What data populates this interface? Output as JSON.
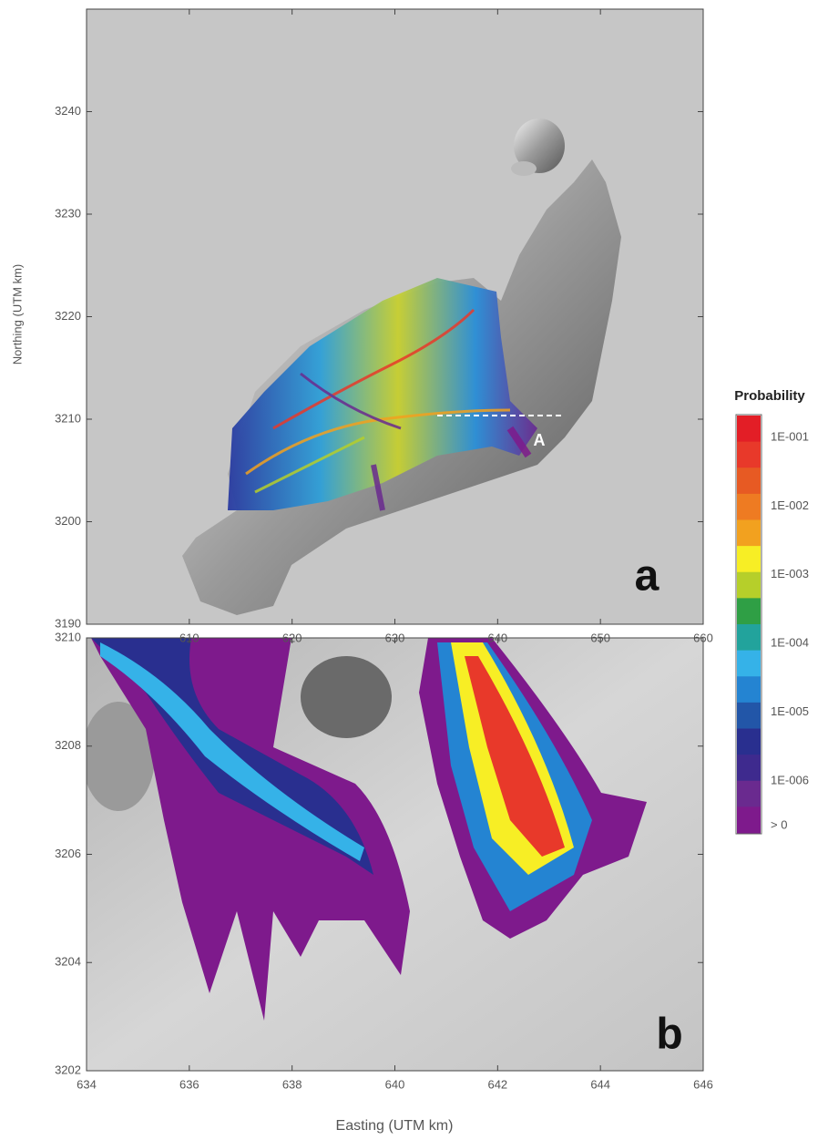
{
  "panels": [
    {
      "letter": "a",
      "annotation": "A",
      "xlim": [
        600,
        660
      ],
      "ylim": [
        3190,
        3250
      ],
      "xticks": [
        610,
        620,
        630,
        640,
        650,
        660
      ],
      "yticks": [
        3190,
        3200,
        3210,
        3220,
        3230,
        3240
      ]
    },
    {
      "letter": "b",
      "xlim": [
        634,
        646
      ],
      "ylim": [
        3202,
        3210
      ],
      "xticks": [
        634,
        636,
        638,
        640,
        642,
        644,
        646
      ],
      "yticks": [
        3202,
        3204,
        3206,
        3208,
        3210
      ]
    }
  ],
  "y_label": "Northing (UTM km)",
  "x_label": "Easting (UTM km)",
  "legend": {
    "title": "Probability",
    "labels": [
      "1E-001",
      "1E-002",
      "1E-003",
      "1E-004",
      "1E-005",
      "1E-006",
      "> 0"
    ],
    "colors": [
      "#e31e26",
      "#e8392a",
      "#e75a23",
      "#ee7b22",
      "#f2a11f",
      "#f7ee25",
      "#b6cf2a",
      "#2f9f45",
      "#22a39c",
      "#35b2e8",
      "#2484d2",
      "#2256a8",
      "#292f8f",
      "#3e2a8e",
      "#6a2a8f",
      "#7e1a8c"
    ]
  }
}
